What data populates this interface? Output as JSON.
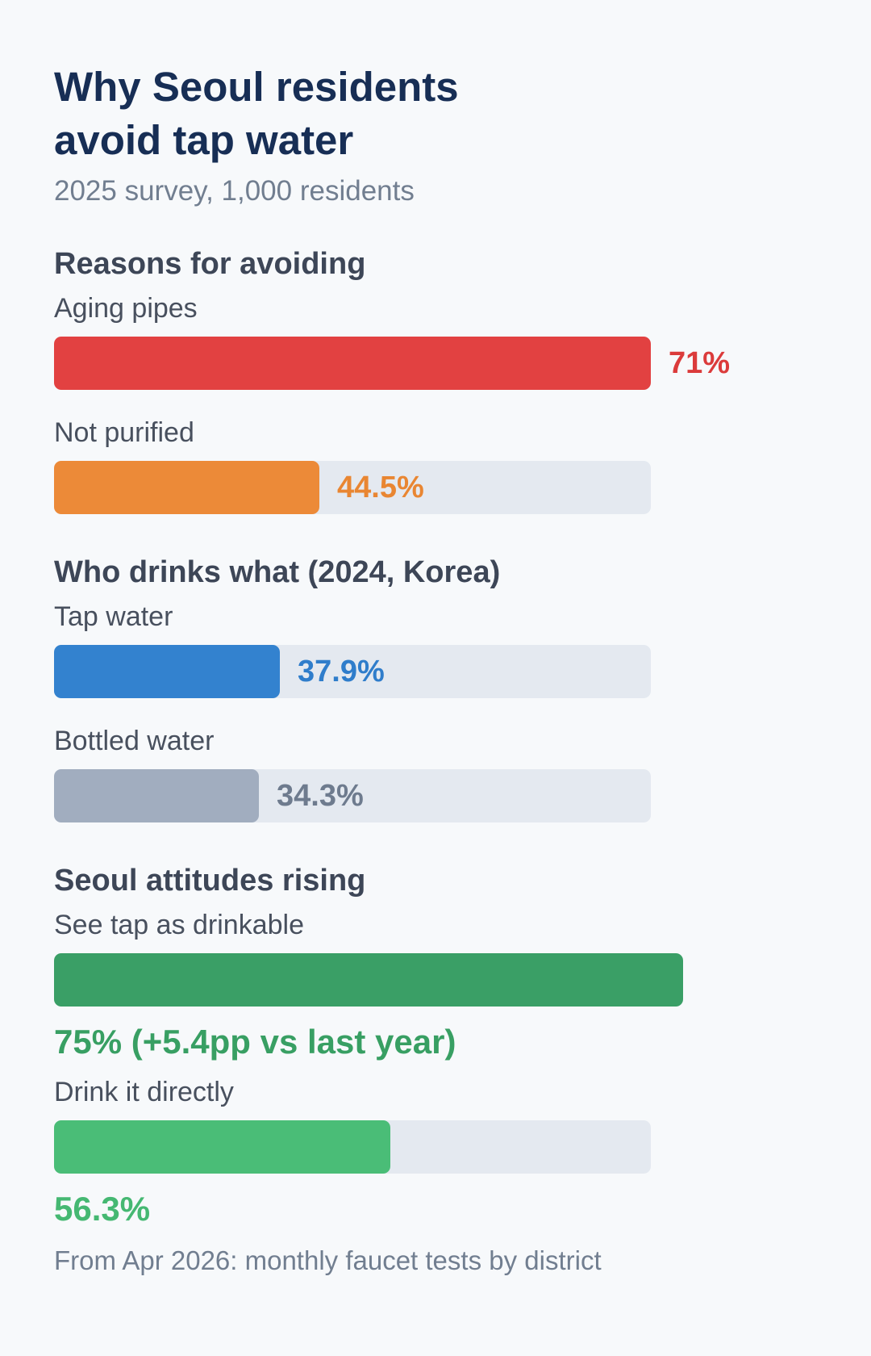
{
  "header": {
    "title": "Why Seoul residents\navoid tap water",
    "subtitle": "2025 survey, 1,000 residents"
  },
  "footnote": "From Apr 2026: monthly faucet tests by district",
  "chart_data": [
    {
      "type": "bar",
      "title": "Reasons for avoiding",
      "categories": [
        "Aging pipes",
        "Not purified"
      ],
      "values": [
        71,
        44.5
      ],
      "value_labels": [
        "71%",
        "44.5%"
      ],
      "colors": [
        "#e24141",
        "#ec8a38"
      ],
      "label_colors": [
        "#db3b3b",
        "#e98632"
      ]
    },
    {
      "type": "bar",
      "title": "Who drinks what (2024, Korea)",
      "categories": [
        "Tap water",
        "Bottled water"
      ],
      "values": [
        37.9,
        34.3
      ],
      "value_labels": [
        "37.9%",
        "34.3%"
      ],
      "colors": [
        "#3382cf",
        "#a1adbf"
      ],
      "label_colors": [
        "#2f7dcb",
        "#6e7b8e"
      ]
    },
    {
      "type": "bar",
      "title": "Seoul attitudes rising",
      "categories": [
        "See tap as drinkable",
        "Drink it directly"
      ],
      "values": [
        75,
        56.3
      ],
      "value_labels": [
        "75% (+5.4pp vs last year)",
        "56.3%"
      ],
      "colors": [
        "#3a9f66",
        "#4abd77"
      ],
      "label_colors": [
        "#389f63",
        "#45b872"
      ]
    }
  ]
}
